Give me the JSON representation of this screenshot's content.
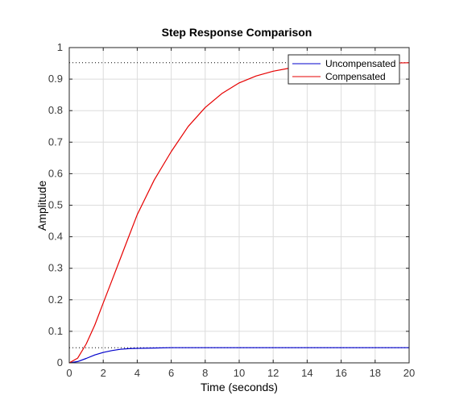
{
  "chart_data": {
    "type": "line",
    "title": "Step Response Comparison",
    "xlabel": "Time (seconds)",
    "ylabel": "Amplitude",
    "xlim": [
      0,
      20
    ],
    "ylim": [
      0,
      1
    ],
    "xticks": [
      0,
      2,
      4,
      6,
      8,
      10,
      12,
      14,
      16,
      18,
      20
    ],
    "yticks": [
      0,
      0.1,
      0.2,
      0.3,
      0.4,
      0.5,
      0.6,
      0.7,
      0.8,
      0.9,
      1
    ],
    "xtick_labels": [
      "0",
      "2",
      "4",
      "6",
      "8",
      "10",
      "12",
      "14",
      "16",
      "18",
      "20"
    ],
    "ytick_labels": [
      "0",
      "0.1",
      "0.2",
      "0.3",
      "0.4",
      "0.5",
      "0.6",
      "0.7",
      "0.8",
      "0.9",
      "1"
    ],
    "grid": true,
    "legend_position": "top-right",
    "series": [
      {
        "name": "Uncompensated",
        "color": "#0000cc",
        "steady_state": 0.048,
        "x": [
          0,
          0.5,
          1,
          1.5,
          2,
          2.5,
          3,
          3.5,
          4,
          5,
          6,
          8,
          10,
          12,
          14,
          16,
          18,
          20
        ],
        "y": [
          0,
          0.004,
          0.014,
          0.025,
          0.033,
          0.039,
          0.043,
          0.045,
          0.046,
          0.047,
          0.048,
          0.048,
          0.048,
          0.048,
          0.048,
          0.048,
          0.048,
          0.048
        ]
      },
      {
        "name": "Compensated",
        "color": "#e60000",
        "steady_state": 0.952,
        "x": [
          0,
          0.5,
          1,
          1.5,
          2,
          2.5,
          3,
          3.5,
          4,
          5,
          6,
          7,
          8,
          9,
          10,
          11,
          12,
          13,
          14,
          15,
          16,
          17,
          18,
          19,
          20
        ],
        "y": [
          0,
          0.015,
          0.06,
          0.12,
          0.19,
          0.26,
          0.33,
          0.4,
          0.47,
          0.58,
          0.67,
          0.75,
          0.81,
          0.855,
          0.888,
          0.91,
          0.925,
          0.935,
          0.942,
          0.946,
          0.949,
          0.95,
          0.951,
          0.951,
          0.952
        ]
      }
    ]
  }
}
